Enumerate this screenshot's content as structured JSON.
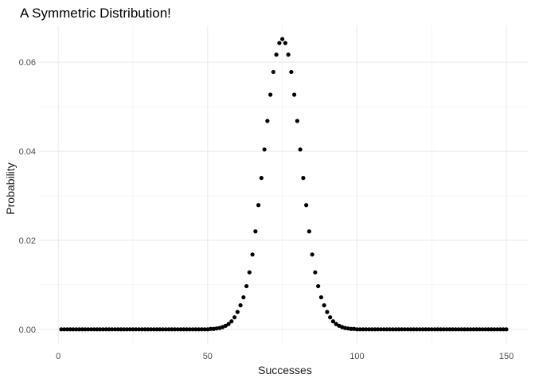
{
  "chart_data": {
    "type": "scatter",
    "title": "A Symmetric Distribution!",
    "xlabel": "Successes",
    "ylabel": "Probability",
    "x_range": [
      1,
      150
    ],
    "y_range": [
      0,
      0.065
    ],
    "xlim": [
      -6.45,
      157.45
    ],
    "ylim": [
      -0.00325,
      0.06825
    ],
    "x_ticks": [
      0,
      50,
      100,
      150
    ],
    "x_tick_labels": [
      "0",
      "50",
      "100",
      "150"
    ],
    "y_ticks": [
      0,
      0.02,
      0.04,
      0.06
    ],
    "y_tick_labels": [
      "0.00",
      "0.02",
      "0.04",
      "0.06"
    ],
    "x_minor_ticks": [
      25,
      75,
      125
    ],
    "y_minor_ticks": [
      0.01,
      0.03,
      0.05
    ],
    "grid": true,
    "point_color": "#000000",
    "grid_color": "#ebebeb",
    "series": [
      {
        "x": [
          1,
          2,
          3,
          4,
          5,
          6,
          7,
          8,
          9,
          10,
          11,
          12,
          13,
          14,
          15,
          16,
          17,
          18,
          19,
          20,
          21,
          22,
          23,
          24,
          25,
          26,
          27,
          28,
          29,
          30,
          31,
          32,
          33,
          34,
          35,
          36,
          37,
          38,
          39,
          40,
          41,
          42,
          43,
          44,
          45,
          46,
          47,
          48,
          49,
          50,
          51,
          52,
          53,
          54,
          55,
          56,
          57,
          58,
          59,
          60,
          61,
          62,
          63,
          64,
          65,
          66,
          67,
          68,
          69,
          70,
          71,
          72,
          73,
          74,
          75,
          76,
          77,
          78,
          79,
          80,
          81,
          82,
          83,
          84,
          85,
          86,
          87,
          88,
          89,
          90,
          91,
          92,
          93,
          94,
          95,
          96,
          97,
          98,
          99,
          100,
          101,
          102,
          103,
          104,
          105,
          106,
          107,
          108,
          109,
          110,
          111,
          112,
          113,
          114,
          115,
          116,
          117,
          118,
          119,
          120,
          121,
          122,
          123,
          124,
          125,
          126,
          127,
          128,
          129,
          130,
          131,
          132,
          133,
          134,
          135,
          136,
          137,
          138,
          139,
          140,
          141,
          142,
          143,
          144,
          145,
          146,
          147,
          148,
          149,
          150
        ],
        "y": [
          0,
          0,
          0,
          0,
          0,
          0,
          0,
          0,
          0,
          0,
          0,
          0,
          0,
          0,
          0,
          0,
          0,
          0,
          0,
          0,
          0,
          0,
          0,
          0,
          0,
          0,
          0,
          0,
          0,
          0,
          0,
          0,
          0,
          0,
          0,
          0,
          0,
          0,
          0,
          0,
          0,
          0,
          0,
          0,
          0,
          0,
          0,
          0,
          0,
          0,
          0.0001,
          0.0001,
          0.0002,
          0.0003,
          0.0005,
          0.0008,
          0.0012,
          0.0018,
          0.0027,
          0.0039,
          0.0054,
          0.0072,
          0.0097,
          0.0128,
          0.0168,
          0.022,
          0.0279,
          0.034,
          0.0404,
          0.0468,
          0.0527,
          0.0578,
          0.0617,
          0.0643,
          0.0652,
          0.0643,
          0.0617,
          0.0578,
          0.0527,
          0.0468,
          0.0404,
          0.034,
          0.0279,
          0.022,
          0.0168,
          0.0128,
          0.0097,
          0.0072,
          0.0054,
          0.0039,
          0.0027,
          0.0018,
          0.0012,
          0.0008,
          0.0005,
          0.0003,
          0.0002,
          0.0001,
          0.0001,
          0,
          0,
          0,
          0,
          0,
          0,
          0,
          0,
          0,
          0,
          0,
          0,
          0,
          0,
          0,
          0,
          0,
          0,
          0,
          0,
          0,
          0,
          0,
          0,
          0,
          0,
          0,
          0,
          0,
          0,
          0,
          0,
          0,
          0,
          0,
          0,
          0,
          0,
          0,
          0,
          0,
          0,
          0,
          0,
          0,
          0,
          0,
          0,
          0,
          0,
          0
        ]
      }
    ]
  }
}
